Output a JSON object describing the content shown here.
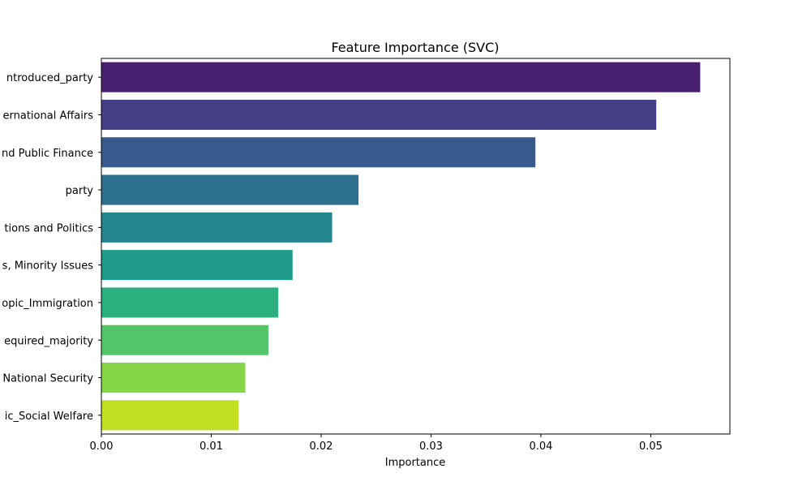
{
  "chart_data": {
    "type": "bar",
    "orientation": "horizontal",
    "title": "Feature Importance (SVC)",
    "xlabel": "Importance",
    "ylabel": "",
    "xlim": [
      0,
      0.0572
    ],
    "xticks": [
      0.0,
      0.01,
      0.02,
      0.03,
      0.04,
      0.05
    ],
    "xtick_labels": [
      "0.00",
      "0.01",
      "0.02",
      "0.03",
      "0.04",
      "0.05"
    ],
    "grid": false,
    "categories": [
      "ntroduced_party",
      "ernational Affairs",
      "nd Public Finance",
      "party",
      "tions and Politics",
      "s, Minority Issues",
      "opic_Immigration",
      "equired_majority",
      "National Security",
      "ic_Social Welfare"
    ],
    "values": [
      0.0545,
      0.0505,
      0.0395,
      0.0234,
      0.021,
      0.0174,
      0.0161,
      0.0152,
      0.0131,
      0.0125
    ],
    "colors": [
      "#482173",
      "#433e85",
      "#38598c",
      "#2d708e",
      "#25858e",
      "#1e9b8a",
      "#2ab07f",
      "#52c569",
      "#86d549",
      "#c2df23"
    ]
  }
}
